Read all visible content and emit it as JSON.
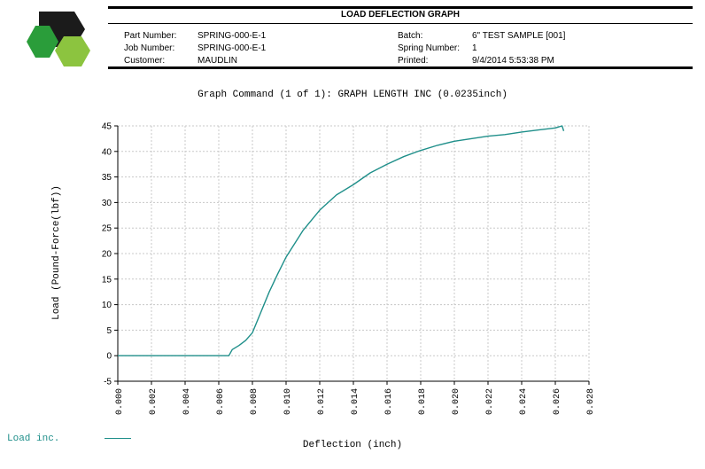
{
  "header": {
    "title": "LOAD DEFLECTION GRAPH",
    "part_number_label": "Part Number:",
    "part_number": "SPRING-000-E-1",
    "job_number_label": "Job Number:",
    "job_number": "SPRING-000-E-1",
    "customer_label": "Customer:",
    "customer": "MAUDLIN",
    "batch_label": "Batch:",
    "batch": "6\" TEST SAMPLE [001]",
    "spring_number_label": "Spring Number:",
    "spring_number": "1",
    "printed_label": "Printed:",
    "printed": "9/4/2014 5:53:38 PM"
  },
  "colors": {
    "series": "#1f8f8a",
    "grid": "#c8c8c8",
    "logo_dark": "#1b1b1b",
    "logo_green": "#2a9d3a",
    "logo_lime": "#8cc43f"
  },
  "chart_data": {
    "type": "line",
    "title": "Graph Command (1 of 1): GRAPH LENGTH INC (0.0235inch)",
    "xlabel": "Deflection (inch)",
    "ylabel": "Load (Pound-Force(lbf))",
    "xlim": [
      0,
      0.028
    ],
    "ylim": [
      -5,
      45
    ],
    "xticks": [
      "0.000",
      "0.002",
      "0.004",
      "0.006",
      "0.008",
      "0.010",
      "0.012",
      "0.014",
      "0.016",
      "0.018",
      "0.020",
      "0.022",
      "0.024",
      "0.026",
      "0.028"
    ],
    "yticks": [
      "-5",
      "0",
      "5",
      "10",
      "15",
      "20",
      "25",
      "30",
      "35",
      "40",
      "45"
    ],
    "grid": true,
    "legend": "bottom-left",
    "series": [
      {
        "name": "Load inc.",
        "x": [
          0,
          0.002,
          0.004,
          0.006,
          0.0066,
          0.0068,
          0.0072,
          0.0076,
          0.008,
          0.0085,
          0.009,
          0.0095,
          0.01,
          0.011,
          0.012,
          0.013,
          0.014,
          0.015,
          0.016,
          0.017,
          0.018,
          0.019,
          0.02,
          0.021,
          0.022,
          0.023,
          0.024,
          0.025,
          0.026,
          0.0264,
          0.0265
        ],
        "y": [
          0,
          0,
          0,
          0,
          0,
          1.2,
          2,
          3,
          4.5,
          8.5,
          12.5,
          16,
          19.3,
          24.5,
          28.5,
          31.5,
          33.5,
          35.8,
          37.5,
          39,
          40.2,
          41.2,
          42,
          42.5,
          43,
          43.3,
          43.8,
          44.2,
          44.6,
          45,
          44
        ]
      }
    ]
  }
}
